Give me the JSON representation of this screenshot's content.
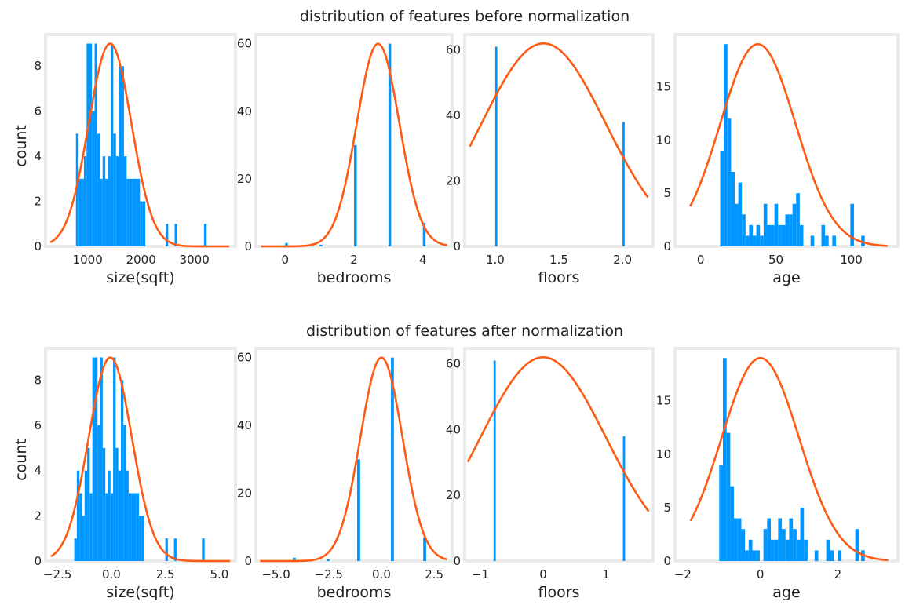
{
  "figure": {
    "rows": [
      {
        "title": "distribution of features before normalization"
      },
      {
        "title": "distribution of features after normalization"
      }
    ],
    "ylabel": "count",
    "bar_color": "#0096ff",
    "curve_color": "#ff5a14",
    "frame_color": "#ebebeb"
  },
  "chart_data": [
    {
      "type": "bar",
      "row": 0,
      "col": 0,
      "title": "distribution of features before normalization",
      "xlabel": "size(sqft)",
      "ylabel": "count",
      "xlim": [
        210,
        3770
      ],
      "ylim": [
        0,
        9.4
      ],
      "xticks": [
        1000,
        2000,
        3000
      ],
      "xtick_labels": [
        "1000",
        "2000",
        "3000"
      ],
      "yticks": [
        0,
        2,
        4,
        6,
        8
      ],
      "ytick_labels": [
        "0",
        "2",
        "4",
        "6",
        "8"
      ],
      "bin_width": 50,
      "bar_x": [
        780,
        830,
        880,
        930,
        980,
        1030,
        1080,
        1130,
        1180,
        1230,
        1280,
        1330,
        1380,
        1430,
        1480,
        1530,
        1580,
        1630,
        1680,
        1730,
        1780,
        1830,
        1880,
        1930,
        1980,
        2030,
        2460,
        2630,
        3180
      ],
      "bar_values": [
        5,
        3,
        3,
        4,
        9,
        9,
        6,
        9,
        5,
        3,
        4,
        3,
        4,
        9,
        5,
        4,
        8,
        8,
        4,
        3,
        3,
        3,
        3,
        3,
        2,
        2,
        1,
        1,
        1
      ],
      "fit_curve": {
        "mean": 1420,
        "sd": 400,
        "peak": 9,
        "x_range": [
          300,
          3650
        ]
      }
    },
    {
      "type": "bar",
      "row": 0,
      "col": 1,
      "xlabel": "bedrooms",
      "xlim": [
        -0.85,
        4.85
      ],
      "ylim": [
        0,
        62.7
      ],
      "xticks": [
        0,
        2,
        4
      ],
      "xtick_labels": [
        "0",
        "2",
        "4"
      ],
      "yticks": [
        0,
        20,
        40,
        60
      ],
      "ytick_labels": [
        "0",
        "20",
        "40",
        "60"
      ],
      "bin_width": 0.08,
      "bar_x": [
        0,
        1,
        2,
        3,
        4
      ],
      "bar_values": [
        1,
        0.5,
        30,
        60,
        7
      ],
      "fit_curve": {
        "mean": 2.7,
        "sd": 0.62,
        "peak": 60,
        "x_range": [
          -0.7,
          4.7
        ]
      }
    },
    {
      "type": "bar",
      "row": 0,
      "col": 2,
      "xlabel": "floors",
      "xlim": [
        0.76,
        2.24
      ],
      "ylim": [
        0,
        64.7
      ],
      "xticks": [
        1.0,
        1.5,
        2.0
      ],
      "xtick_labels": [
        "1.0",
        "1.5",
        "2.0"
      ],
      "yticks": [
        0,
        20,
        40,
        60
      ],
      "ytick_labels": [
        "0",
        "20",
        "40",
        "60"
      ],
      "bin_width": 0.017,
      "bar_x": [
        1.0,
        2.0
      ],
      "bar_values": [
        61,
        38
      ],
      "fit_curve": {
        "mean": 1.38,
        "sd": 0.487,
        "peak": 62,
        "x_range": [
          0.8,
          2.2
        ]
      }
    },
    {
      "type": "bar",
      "row": 0,
      "col": 3,
      "xlabel": "age",
      "xlim": [
        -17,
        131
      ],
      "ylim": [
        0,
        19.9
      ],
      "xticks": [
        0,
        50,
        100
      ],
      "xtick_labels": [
        "0",
        "50",
        "100"
      ],
      "yticks": [
        0,
        5,
        10,
        15
      ],
      "ytick_labels": [
        "0",
        "5",
        "10",
        "15"
      ],
      "bin_width": 2.4,
      "bar_x": [
        13,
        15.4,
        17.8,
        20.2,
        22.6,
        25,
        27.4,
        29.8,
        32.2,
        34.6,
        37,
        39.4,
        41.8,
        44.2,
        46.6,
        49,
        51.4,
        53.8,
        56.2,
        58.6,
        61,
        63.4,
        65.8,
        73,
        80.2,
        82.6,
        87.4,
        99.4,
        106.6
      ],
      "bar_values": [
        9,
        19,
        12,
        7,
        4,
        6,
        3,
        1,
        2,
        1,
        2,
        1,
        4,
        2,
        2,
        4,
        2,
        2,
        3,
        3,
        4,
        5,
        2,
        1,
        2,
        1,
        1,
        4,
        1
      ],
      "fit_curve": {
        "mean": 38,
        "sd": 25,
        "peak": 19,
        "x_range": [
          -7,
          124
        ]
      }
    },
    {
      "type": "bar",
      "row": 1,
      "col": 0,
      "title": "distribution of features after normalization",
      "xlabel": "size(sqft)",
      "ylabel": "count",
      "xlim": [
        -3.05,
        5.75
      ],
      "ylim": [
        0,
        9.4
      ],
      "xticks": [
        -2.5,
        0.0,
        2.5,
        5.0
      ],
      "xtick_labels": [
        "−2.5",
        "0.0",
        "2.5",
        "5.0"
      ],
      "yticks": [
        0,
        2,
        4,
        6,
        8
      ],
      "ytick_labels": [
        "0",
        "2",
        "4",
        "6",
        "8"
      ],
      "bin_width": 0.12,
      "bar_x": [
        -1.72,
        -1.6,
        -1.48,
        -1.36,
        -1.24,
        -1.12,
        -1.0,
        -0.88,
        -0.76,
        -0.64,
        -0.52,
        -0.4,
        -0.28,
        -0.16,
        -0.04,
        0.08,
        0.2,
        0.32,
        0.44,
        0.56,
        0.68,
        0.8,
        0.92,
        1.04,
        1.16,
        1.28,
        1.4,
        2.5,
        2.9,
        4.2
      ],
      "bar_values": [
        1,
        4,
        3,
        2,
        4,
        5,
        3,
        9,
        9,
        6,
        9,
        5,
        3,
        4,
        3,
        9,
        5,
        4,
        8,
        6,
        4,
        3,
        3,
        3,
        3,
        2,
        2,
        1,
        1,
        1
      ],
      "fit_curve": {
        "mean": -0.05,
        "sd": 1.0,
        "peak": 9,
        "x_range": [
          -2.8,
          5.5
        ]
      }
    },
    {
      "type": "bar",
      "row": 1,
      "col": 1,
      "xlabel": "bedrooms",
      "xlim": [
        -5.95,
        3.35
      ],
      "ylim": [
        0,
        62.7
      ],
      "xticks": [
        -5.0,
        -2.5,
        0.0,
        2.5
      ],
      "xtick_labels": [
        "−5.0",
        "−2.5",
        "0.0",
        "2.5"
      ],
      "yticks": [
        0,
        20,
        40,
        60
      ],
      "ytick_labels": [
        "0",
        "20",
        "40",
        "60"
      ],
      "bin_width": 0.14,
      "bar_x": [
        -4.2,
        -2.6,
        -1.15,
        0.45,
        1.98
      ],
      "bar_values": [
        1,
        0.5,
        30,
        60,
        7
      ],
      "fit_curve": {
        "mean": 0,
        "sd": 1.0,
        "peak": 60,
        "x_range": [
          -5.75,
          3.1
        ]
      }
    },
    {
      "type": "bar",
      "row": 1,
      "col": 2,
      "xlabel": "floors",
      "xlim": [
        -1.25,
        1.75
      ],
      "ylim": [
        0,
        64.7
      ],
      "xticks": [
        -1,
        0,
        1
      ],
      "xtick_labels": [
        "−1",
        "0",
        "1"
      ],
      "yticks": [
        0,
        20,
        40,
        60
      ],
      "ytick_labels": [
        "0",
        "20",
        "40",
        "60"
      ],
      "bin_width": 0.035,
      "bar_x": [
        -0.79,
        1.27
      ],
      "bar_values": [
        61,
        38
      ],
      "fit_curve": {
        "mean": 0,
        "sd": 1.0,
        "peak": 62,
        "x_range": [
          -1.2,
          1.68
        ]
      }
    },
    {
      "type": "bar",
      "row": 1,
      "col": 3,
      "xlabel": "age",
      "xlim": [
        -2.2,
        3.55
      ],
      "ylim": [
        0,
        19.9
      ],
      "xticks": [
        -2,
        0,
        2
      ],
      "xtick_labels": [
        "−2",
        "0",
        "2"
      ],
      "yticks": [
        0,
        5,
        10,
        15
      ],
      "ytick_labels": [
        "0",
        "5",
        "10",
        "15"
      ],
      "bin_width": 0.095,
      "bar_x": [
        -1.06,
        -0.965,
        -0.87,
        -0.775,
        -0.68,
        -0.585,
        -0.49,
        -0.395,
        -0.3,
        -0.205,
        -0.11,
        0.08,
        0.175,
        0.27,
        0.365,
        0.46,
        0.555,
        0.65,
        0.745,
        0.84,
        0.935,
        1.03,
        1.125,
        1.4,
        1.7,
        1.8,
        2.0,
        2.45,
        2.6
      ],
      "bar_values": [
        9,
        19,
        12,
        7,
        4,
        4,
        3,
        1,
        2,
        1,
        1,
        3,
        4,
        2,
        2,
        4,
        3,
        2,
        4,
        3,
        2,
        5,
        2,
        1,
        2,
        1,
        1,
        3,
        1
      ],
      "fit_curve": {
        "mean": 0,
        "sd": 1.0,
        "peak": 19,
        "x_range": [
          -1.8,
          3.3
        ]
      }
    }
  ]
}
